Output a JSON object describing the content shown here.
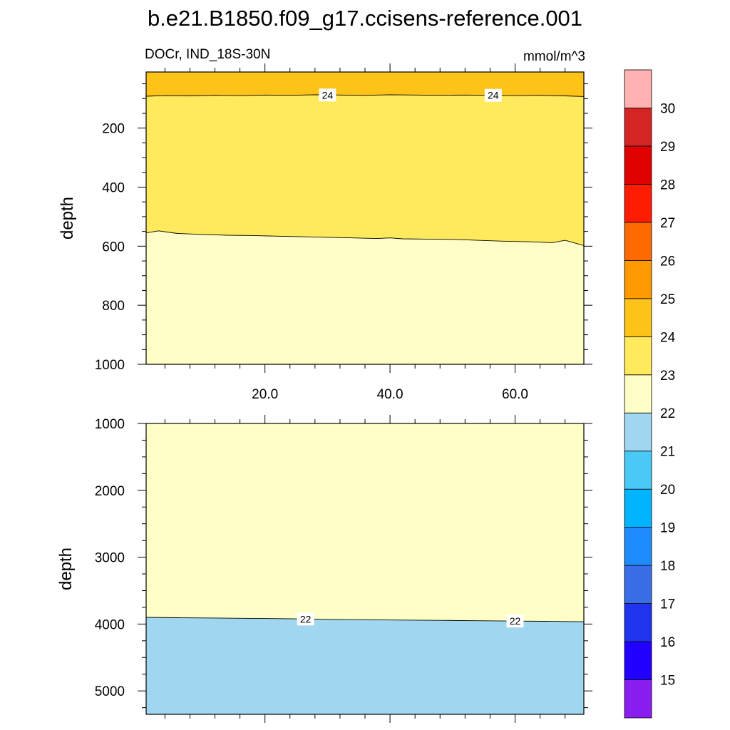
{
  "title": "b.e21.B1850.f09_g17.ccisens-reference.001",
  "subtitle_left": "DOCr, IND_18S-30N",
  "subtitle_right": "mmol/m^3",
  "ylabel": "depth",
  "chart_data": [
    {
      "type": "heatmap",
      "panel": "upper",
      "ylabel": "depth",
      "xlim": [
        1,
        71
      ],
      "ylim": [
        1000,
        10
      ],
      "x_ticks": [
        20.0,
        40.0,
        60.0
      ],
      "x_tick_labels": [
        "20.0",
        "40.0",
        "60.0"
      ],
      "y_ticks": [
        200,
        400,
        600,
        800,
        1000
      ],
      "y_tick_labels": [
        "200",
        "400",
        "600",
        "800",
        "1000"
      ],
      "contours": [
        {
          "level": 24,
          "x": [
            1,
            4,
            8,
            12,
            16,
            20,
            24,
            28,
            32,
            36,
            40,
            44,
            48,
            52,
            56,
            60,
            64,
            68,
            71
          ],
          "y": [
            92,
            90,
            91,
            89,
            90,
            88,
            89,
            87,
            88,
            89,
            87,
            88,
            89,
            88,
            89,
            90,
            89,
            91,
            93
          ]
        },
        {
          "level": 23,
          "x": [
            1,
            3,
            6,
            10,
            14,
            18,
            22,
            26,
            30,
            34,
            38,
            40,
            42,
            46,
            50,
            54,
            58,
            62,
            66,
            68,
            71
          ],
          "y": [
            555,
            548,
            557,
            560,
            563,
            564,
            566,
            568,
            570,
            572,
            574,
            572,
            575,
            576,
            577,
            580,
            583,
            585,
            588,
            580,
            598
          ]
        }
      ],
      "contour_labels": [
        {
          "text": "24",
          "x": 30,
          "y": 88
        },
        {
          "text": "24",
          "x": 56.5,
          "y": 89
        }
      ],
      "regions": [
        {
          "label": "24-25",
          "color": "#fec318",
          "above_contour": 24
        },
        {
          "label": "23-24",
          "color": "#ffe95c",
          "between": [
            24,
            23
          ]
        },
        {
          "label": "22-23",
          "color": "#fffec6",
          "below_contour": 23
        }
      ]
    },
    {
      "type": "heatmap",
      "panel": "lower",
      "ylabel": "depth",
      "xlim": [
        1,
        71
      ],
      "ylim": [
        5350,
        1000
      ],
      "y_ticks": [
        1000,
        2000,
        3000,
        4000,
        5000
      ],
      "y_tick_labels": [
        "1000",
        "2000",
        "3000",
        "4000",
        "5000"
      ],
      "contours": [
        {
          "level": 22,
          "x": [
            1,
            6,
            12,
            18,
            24,
            30,
            36,
            42,
            48,
            54,
            60,
            66,
            71
          ],
          "y": [
            3900,
            3905,
            3910,
            3915,
            3920,
            3930,
            3935,
            3940,
            3945,
            3950,
            3955,
            3960,
            3965
          ]
        }
      ],
      "contour_labels": [
        {
          "text": "22",
          "x": 26.5,
          "y": 3925
        },
        {
          "text": "22",
          "x": 60,
          "y": 3955
        }
      ],
      "regions": [
        {
          "label": "22-23",
          "color": "#fffec6",
          "above_contour": 22
        },
        {
          "label": "21-22",
          "color": "#a0d6f0",
          "below_contour": 22
        }
      ]
    }
  ],
  "colorbar": {
    "levels": [
      "15",
      "16",
      "17",
      "18",
      "19",
      "20",
      "21",
      "22",
      "23",
      "24",
      "25",
      "26",
      "27",
      "28",
      "29",
      "30"
    ],
    "colors": [
      "#8a1ef0",
      "#2200ff",
      "#2033ee",
      "#3a6ee6",
      "#1e8cff",
      "#00b4ff",
      "#4ac8f6",
      "#a0d6f0",
      "#fffec6",
      "#ffe95c",
      "#fec318",
      "#ff9a00",
      "#ff6a00",
      "#ff1c00",
      "#e00000",
      "#d42424",
      "#ffb2b2"
    ]
  }
}
